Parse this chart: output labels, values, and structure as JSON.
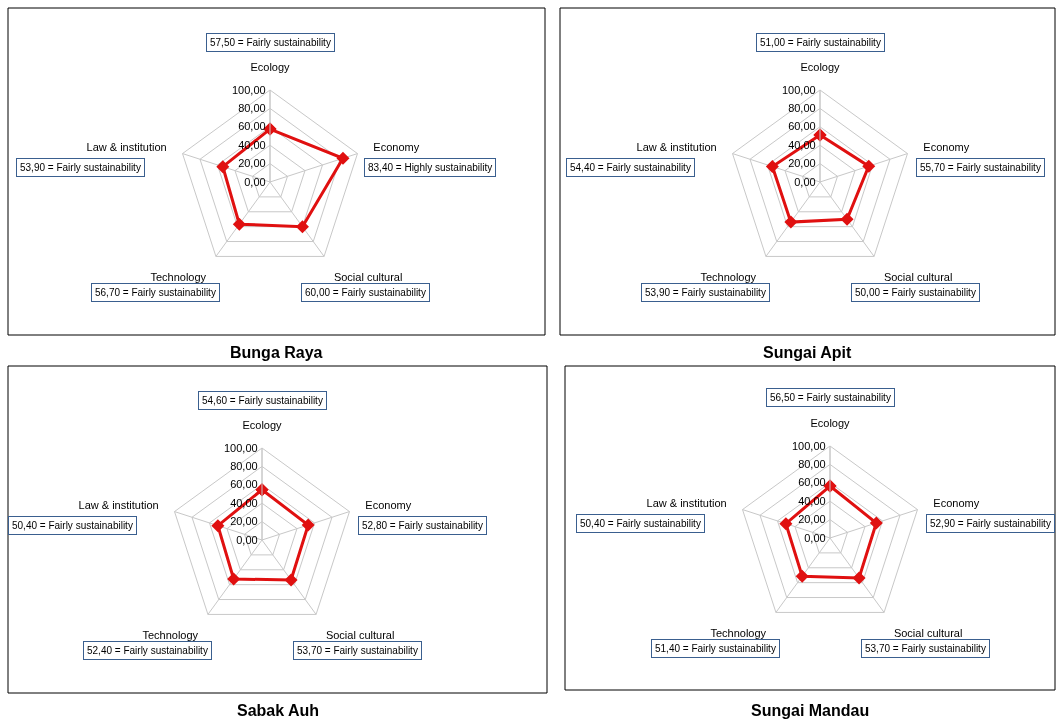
{
  "chart_data": [
    {
      "type": "radar",
      "title": "Bunga Raya",
      "categories": [
        "Ecology",
        "Economy",
        "Social cultural",
        "Technology",
        "Law & institution"
      ],
      "series": [
        {
          "color": "#e01010",
          "values": [
            57.5,
            83.4,
            60.0,
            56.7,
            53.9
          ]
        }
      ],
      "annotations": [
        "57,50 = Fairly sustainability",
        "83,40 = Highly sustainability",
        "60,00 = Fairly sustainability",
        "56,70 = Fairly sustainability",
        "53,90 = Fairly sustainability"
      ],
      "ylim": [
        0,
        100
      ],
      "yticks": [
        {
          "value": 0,
          "label": "0,00"
        },
        {
          "value": 20,
          "label": "20,00"
        },
        {
          "value": 40,
          "label": "40,00"
        },
        {
          "value": 60,
          "label": "60,00"
        },
        {
          "value": 80,
          "label": "80,00"
        },
        {
          "value": 100,
          "label": "100,00"
        }
      ],
      "grid": true,
      "marker": "diamond",
      "line_style": "solid"
    },
    {
      "type": "radar",
      "title": "Sungai Apit",
      "categories": [
        "Ecology",
        "Economy",
        "Social cultural",
        "Technology",
        "Law & institution"
      ],
      "series": [
        {
          "color": "#e01010",
          "values": [
            51.0,
            55.7,
            50.0,
            53.9,
            54.4
          ]
        }
      ],
      "annotations": [
        "51,00 = Fairly sustainability",
        "55,70 = Fairly sustainability",
        "50,00 = Fairly sustainability",
        "53,90 = Fairly sustainability",
        "54,40 = Fairly sustainability"
      ],
      "ylim": [
        0,
        100
      ],
      "yticks": [
        {
          "value": 0,
          "label": "0,00"
        },
        {
          "value": 20,
          "label": "20,00"
        },
        {
          "value": 40,
          "label": "40,00"
        },
        {
          "value": 60,
          "label": "60,00"
        },
        {
          "value": 80,
          "label": "80,00"
        },
        {
          "value": 100,
          "label": "100,00"
        }
      ],
      "grid": true,
      "marker": "diamond",
      "line_style": "solid"
    },
    {
      "type": "radar",
      "title": "Sabak Auh",
      "categories": [
        "Ecology",
        "Economy",
        "Social cultural",
        "Technology",
        "Law & institution"
      ],
      "series": [
        {
          "color": "#e01010",
          "values": [
            54.6,
            52.8,
            53.7,
            52.4,
            50.4
          ]
        }
      ],
      "annotations": [
        "54,60 = Fairly sustainability",
        "52,80 = Fairly sustainability",
        "53,70 = Fairly sustainability",
        "52,40 = Fairly sustainability",
        "50,40 = Fairly sustainability"
      ],
      "ylim": [
        0,
        100
      ],
      "yticks": [
        {
          "value": 0,
          "label": "0,00"
        },
        {
          "value": 20,
          "label": "20,00"
        },
        {
          "value": 40,
          "label": "40,00"
        },
        {
          "value": 60,
          "label": "60,00"
        },
        {
          "value": 80,
          "label": "80,00"
        },
        {
          "value": 100,
          "label": "100,00"
        }
      ],
      "grid": true,
      "marker": "diamond",
      "line_style": "solid"
    },
    {
      "type": "radar",
      "title": "Sungai Mandau",
      "categories": [
        "Ecology",
        "Economy",
        "Social cultural",
        "Technology",
        "Law & institution"
      ],
      "series": [
        {
          "color": "#e01010",
          "values": [
            56.5,
            52.9,
            53.7,
            51.4,
            50.4
          ]
        }
      ],
      "annotations": [
        "56,50 = Fairly sustainability",
        "52,90 = Fairly sustainability",
        "53,70 = Fairly sustainability",
        "51,40 = Fairly sustainability",
        "50,40 = Fairly sustainability"
      ],
      "ylim": [
        0,
        100
      ],
      "yticks": [
        {
          "value": 0,
          "label": "0,00"
        },
        {
          "value": 20,
          "label": "20,00"
        },
        {
          "value": 40,
          "label": "40,00"
        },
        {
          "value": 60,
          "label": "60,00"
        },
        {
          "value": 80,
          "label": "80,00"
        },
        {
          "value": 100,
          "label": "100,00"
        }
      ],
      "grid": true,
      "marker": "diamond",
      "line_style": "solid"
    }
  ]
}
